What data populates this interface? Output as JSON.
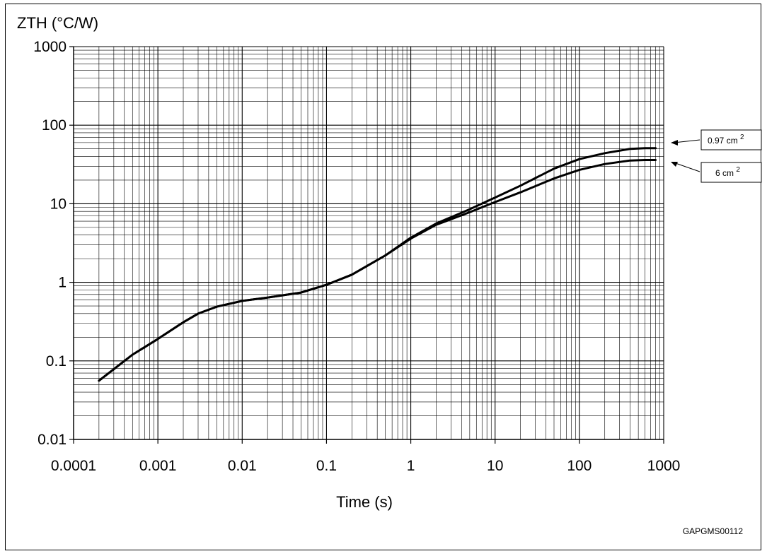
{
  "chart_data": {
    "type": "line",
    "ylabel": "ZTH (°C/W)",
    "xlabel": "Time (s)",
    "x_scale": "log",
    "y_scale": "log",
    "xlim": [
      0.0001,
      1000
    ],
    "ylim": [
      0.01,
      1000
    ],
    "grid": true,
    "x_tick_labels": [
      "0.0001",
      "0.001",
      "0.01",
      "0.1",
      "1",
      "10",
      "100",
      "1000"
    ],
    "y_tick_labels": [
      "0.01",
      "0.1",
      "1",
      "10",
      "100",
      "1000"
    ],
    "series": [
      {
        "name": "0.97 cm 2",
        "x": [
          0.0002,
          0.0005,
          0.001,
          0.002,
          0.003,
          0.005,
          0.01,
          0.02,
          0.05,
          0.1,
          0.2,
          0.5,
          1,
          2,
          5,
          10,
          20,
          50,
          100,
          200,
          400,
          600,
          800
        ],
        "y": [
          0.056,
          0.12,
          0.19,
          0.31,
          0.4,
          0.49,
          0.58,
          0.64,
          0.74,
          0.93,
          1.25,
          2.2,
          3.7,
          5.6,
          8.5,
          12.0,
          17.0,
          28.0,
          37.0,
          44.0,
          50.0,
          51.0,
          51.0
        ]
      },
      {
        "name": "6 cm 2",
        "x": [
          0.0002,
          0.0005,
          0.001,
          0.002,
          0.003,
          0.005,
          0.01,
          0.02,
          0.05,
          0.1,
          0.2,
          0.5,
          1,
          2,
          5,
          10,
          20,
          50,
          100,
          200,
          400,
          600,
          800
        ],
        "y": [
          0.056,
          0.12,
          0.19,
          0.31,
          0.4,
          0.49,
          0.58,
          0.64,
          0.74,
          0.93,
          1.25,
          2.2,
          3.6,
          5.4,
          7.8,
          10.5,
          14.0,
          21.0,
          27.0,
          32.0,
          35.5,
          36.0,
          36.0
        ]
      }
    ]
  },
  "legend": {
    "label_a_text": "0.97 cm",
    "label_a_sup": "2",
    "label_b_text": "6 cm",
    "label_b_sup": "2"
  },
  "figure_code": "GAPGMS00112"
}
